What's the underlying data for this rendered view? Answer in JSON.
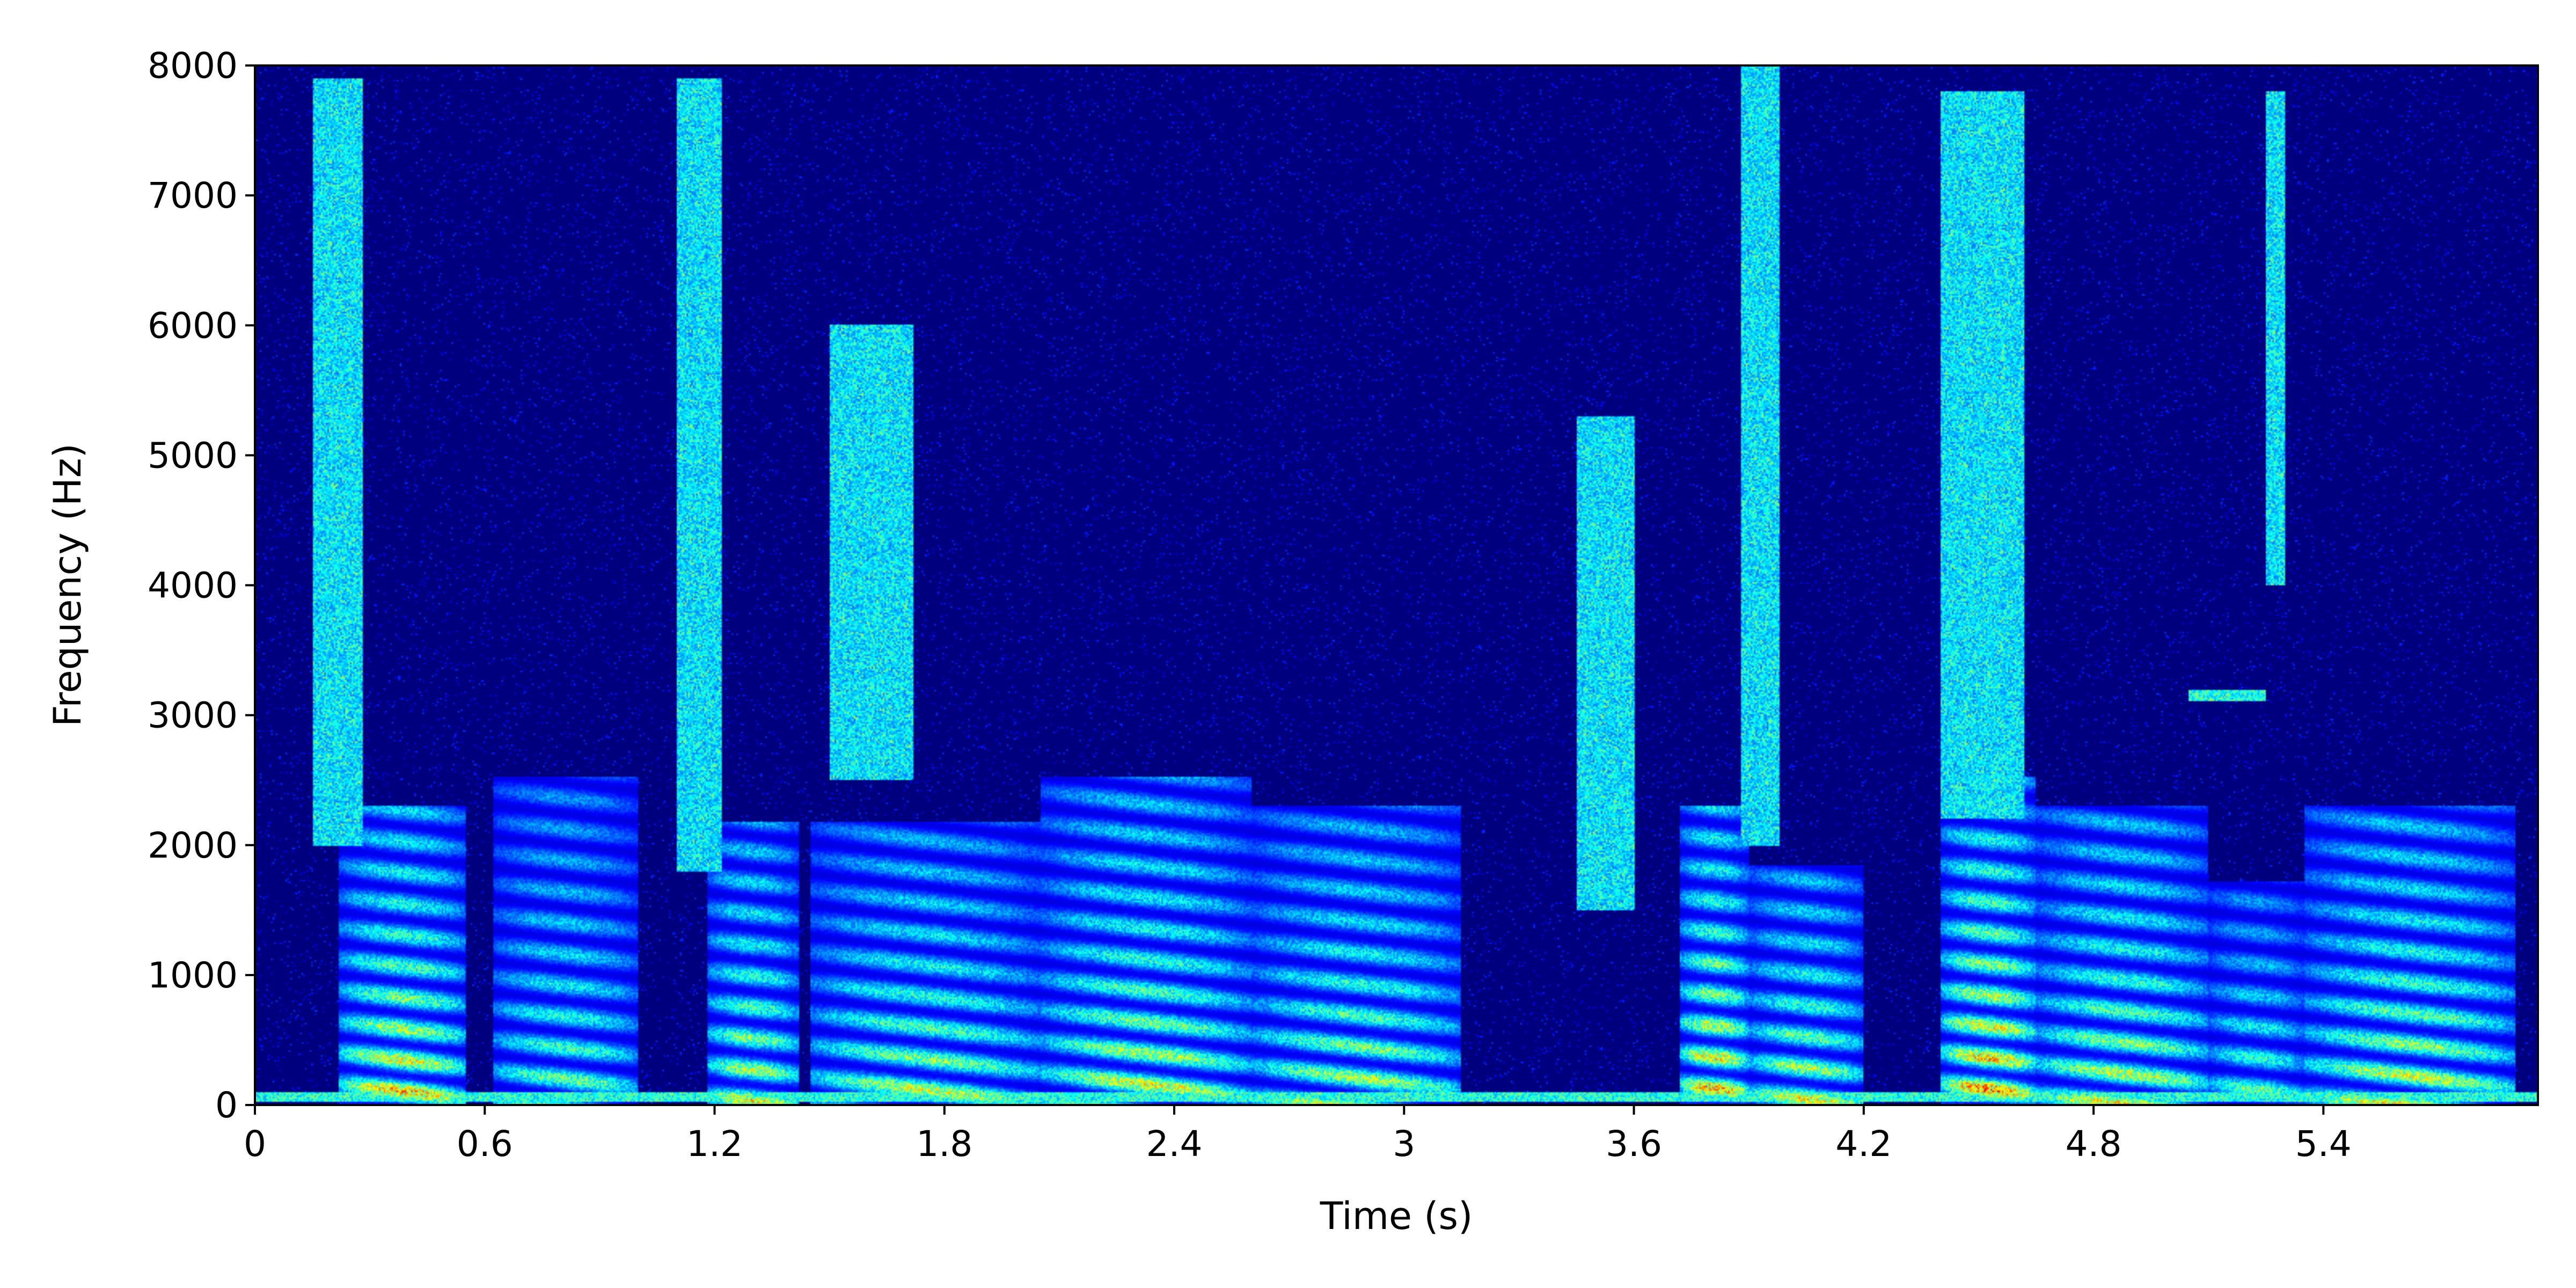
{
  "chart_data": {
    "type": "heatmap",
    "title": "",
    "xlabel": "Time (s)",
    "ylabel": "Frequency (Hz)",
    "xlim": [
      0,
      5.96
    ],
    "ylim": [
      0,
      8000
    ],
    "x_ticks": [
      "0",
      "0.6",
      "1.2",
      "1.8",
      "2.4",
      "3",
      "3.6",
      "4.2",
      "4.8",
      "5.4"
    ],
    "x_tick_values": [
      0,
      0.6,
      1.2,
      1.8,
      2.4,
      3.0,
      3.6,
      4.2,
      4.8,
      5.4
    ],
    "y_ticks": [
      "0",
      "1000",
      "2000",
      "3000",
      "4000",
      "5000",
      "6000",
      "7000",
      "8000"
    ],
    "y_tick_values": [
      0,
      1000,
      2000,
      3000,
      4000,
      5000,
      6000,
      7000,
      8000
    ],
    "colormap": "jet",
    "background_color": "#00007f",
    "colorbar": false,
    "grid": false,
    "energy_regions": [
      {
        "t_start": 0.22,
        "t_end": 0.55,
        "f_max": 2000,
        "peak": 0.85
      },
      {
        "t_start": 0.62,
        "t_end": 1.0,
        "f_max": 2200,
        "peak": 0.6
      },
      {
        "t_start": 1.18,
        "t_end": 1.42,
        "f_max": 1900,
        "peak": 0.75
      },
      {
        "t_start": 1.45,
        "t_end": 2.05,
        "f_max": 1900,
        "peak": 0.7
      },
      {
        "t_start": 2.05,
        "t_end": 2.6,
        "f_max": 2200,
        "peak": 0.75
      },
      {
        "t_start": 2.6,
        "t_end": 3.15,
        "f_max": 2000,
        "peak": 0.7
      },
      {
        "t_start": 3.72,
        "t_end": 3.9,
        "f_max": 2000,
        "peak": 0.9
      },
      {
        "t_start": 3.9,
        "t_end": 4.2,
        "f_max": 1600,
        "peak": 0.75
      },
      {
        "t_start": 4.4,
        "t_end": 4.65,
        "f_max": 2200,
        "peak": 0.95
      },
      {
        "t_start": 4.65,
        "t_end": 5.1,
        "f_max": 2000,
        "peak": 0.75
      },
      {
        "t_start": 5.1,
        "t_end": 5.35,
        "f_max": 1500,
        "peak": 0.6
      },
      {
        "t_start": 5.35,
        "t_end": 5.9,
        "f_max": 2000,
        "peak": 0.75
      }
    ],
    "fricative_regions": [
      {
        "t_start": 0.15,
        "t_end": 0.28,
        "f_min": 2000,
        "f_max": 7900
      },
      {
        "t_start": 1.1,
        "t_end": 1.22,
        "f_min": 1800,
        "f_max": 7900
      },
      {
        "t_start": 1.5,
        "t_end": 1.72,
        "f_min": 2500,
        "f_max": 6000
      },
      {
        "t_start": 3.45,
        "t_end": 3.6,
        "f_min": 1500,
        "f_max": 5300
      },
      {
        "t_start": 3.88,
        "t_end": 3.98,
        "f_min": 2000,
        "f_max": 8000
      },
      {
        "t_start": 4.4,
        "t_end": 4.62,
        "f_min": 2200,
        "f_max": 7800
      },
      {
        "t_start": 5.25,
        "t_end": 5.3,
        "f_min": 4000,
        "f_max": 7800
      }
    ],
    "horizontal_bands": [
      {
        "f": 60,
        "t_start": 0,
        "t_end": 5.96
      },
      {
        "f": 3150,
        "t_start": 5.05,
        "t_end": 5.25
      }
    ]
  }
}
